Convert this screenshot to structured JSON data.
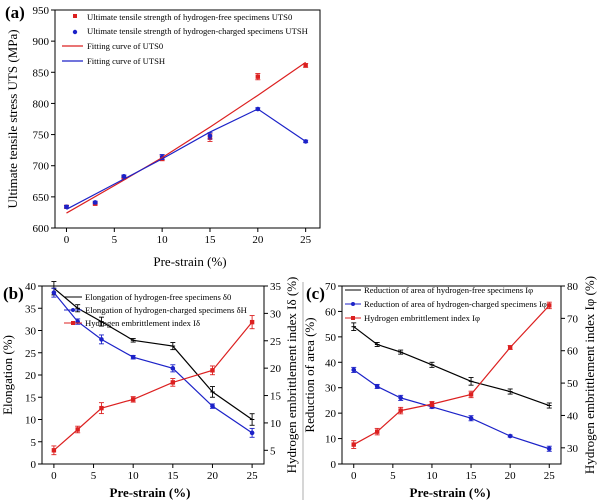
{
  "chart_data": [
    {
      "type": "scatter",
      "panel_label": "(a)",
      "xlabel": "Pre-strain (%)",
      "ylabel": "Ultimate tensile stress UTS (MPa)",
      "x_ticks": [
        0,
        5,
        10,
        15,
        20,
        25
      ],
      "y_ticks": [
        600,
        650,
        700,
        750,
        800,
        850,
        900,
        950
      ],
      "xlim": [
        -1.2,
        26.5
      ],
      "ylim": [
        600,
        950
      ],
      "series": [
        {
          "name": "Ultimate tensile strength of hydrogen-free specimens UTS0",
          "marker": "square",
          "color": "#dc2020",
          "x": [
            0,
            3,
            6,
            10,
            15,
            20,
            25
          ],
          "y": [
            634,
            639,
            681,
            712,
            745,
            843,
            861
          ],
          "err": [
            2,
            2,
            2,
            4,
            6,
            5,
            3
          ]
        },
        {
          "name": "Ultimate tensile strength of hydrogen-charged specimens UTSH",
          "marker": "circle",
          "color": "#1c22c8",
          "x": [
            0,
            3,
            6,
            10,
            15,
            20,
            25
          ],
          "y": [
            634,
            641,
            683,
            714,
            748,
            791,
            739
          ],
          "err": [
            2,
            2,
            2,
            4,
            5,
            2,
            2
          ]
        },
        {
          "name": "Fitting curve of UTS0",
          "type": "line",
          "color": "#dc2020",
          "x": [
            0,
            5,
            10,
            15,
            20,
            25
          ],
          "y": [
            624,
            668,
            713,
            762,
            813,
            866
          ]
        },
        {
          "name": "Fitting curve of UTSH",
          "type": "line",
          "color": "#1c22c8",
          "x": [
            0,
            10,
            15,
            20,
            25
          ],
          "y": [
            630,
            711,
            754,
            791,
            739
          ]
        }
      ]
    },
    {
      "type": "line",
      "panel_label": "(b)",
      "xlabel": "Pre-strain (%)",
      "ylabel": "Elongation (%)",
      "y2label": "Hydrogen embrittlement index Iδ (%)",
      "x_ticks": [
        0,
        5,
        10,
        15,
        20,
        25
      ],
      "y_ticks": [
        0,
        5,
        10,
        15,
        20,
        25,
        30,
        35,
        40
      ],
      "y2_ticks": [
        5,
        10,
        15,
        20,
        25,
        30,
        35
      ],
      "xlim": [
        -1.5,
        26.5
      ],
      "ylim": [
        0,
        40
      ],
      "y2lim": [
        2.5,
        35
      ],
      "series": [
        {
          "name": "Elongation of hydrogen-free specimens δ0",
          "marker": "cross",
          "color": "#000000",
          "axis": "left",
          "x": [
            0,
            3,
            6,
            10,
            15,
            20,
            25
          ],
          "y": [
            39.5,
            35,
            32,
            27.8,
            26.5,
            16.2,
            10
          ],
          "err": [
            1.5,
            0.8,
            1,
            0.4,
            0.8,
            1.2,
            1.3
          ]
        },
        {
          "name": "Elongation of hydrogen-charged specimens δH",
          "marker": "circle",
          "color": "#1c22c8",
          "axis": "left",
          "x": [
            0,
            3,
            6,
            10,
            15,
            20,
            25
          ],
          "y": [
            38.5,
            32,
            28,
            24,
            21.5,
            13,
            7
          ],
          "err": [
            1,
            0.6,
            1,
            0.4,
            0.8,
            0.5,
            1
          ]
        },
        {
          "name": "Hydrogen embrittlement index Iδ",
          "marker": "square",
          "color": "#dc2020",
          "axis": "right",
          "x": [
            0,
            3,
            6,
            10,
            15,
            20,
            25
          ],
          "y": [
            5,
            8.8,
            12.7,
            14.3,
            17.4,
            19.6,
            28.4
          ],
          "err": [
            0.8,
            0.6,
            1,
            0.5,
            0.7,
            0.8,
            1.2
          ]
        }
      ]
    },
    {
      "type": "line",
      "panel_label": "(c)",
      "xlabel": "Pre-strain (%)",
      "ylabel": "Reduction of area (%)",
      "y2label": "Hydrogen embrittlement index Iφ (%)",
      "x_ticks": [
        0,
        5,
        10,
        15,
        20,
        25
      ],
      "y_ticks": [
        0,
        10,
        20,
        30,
        40,
        50,
        60,
        70
      ],
      "y2_ticks": [
        30,
        40,
        50,
        60,
        70,
        80
      ],
      "xlim": [
        -1.5,
        26.5
      ],
      "ylim": [
        0,
        70
      ],
      "y2lim": [
        25,
        80
      ],
      "series": [
        {
          "name": "Reduction of area of hydrogen-free specimens Iφ",
          "marker": "cross",
          "color": "#000000",
          "axis": "left",
          "x": [
            0,
            3,
            6,
            10,
            15,
            20,
            25
          ],
          "y": [
            54,
            47,
            44,
            39,
            32.5,
            28.5,
            23
          ],
          "err": [
            1.5,
            0.8,
            0.8,
            1,
            1.5,
            1,
            1
          ]
        },
        {
          "name": "Reduction of area of hydrogen-charged specimens Iφ",
          "marker": "circle",
          "color": "#1c22c8",
          "axis": "left",
          "x": [
            0,
            3,
            6,
            10,
            15,
            20,
            25
          ],
          "y": [
            37,
            30.5,
            26,
            22.5,
            18,
            11,
            6
          ],
          "err": [
            1,
            0.8,
            1,
            0.6,
            1,
            0.4,
            1
          ]
        },
        {
          "name": "Hydrogen embrittlement index Iφ",
          "marker": "square",
          "color": "#dc2020",
          "axis": "right",
          "x": [
            0,
            3,
            6,
            10,
            15,
            20,
            25
          ],
          "y": [
            31,
            35,
            41.5,
            43.5,
            46.5,
            61,
            74
          ],
          "err": [
            1.2,
            1,
            1,
            0.8,
            1,
            0.6,
            1
          ]
        }
      ]
    }
  ]
}
